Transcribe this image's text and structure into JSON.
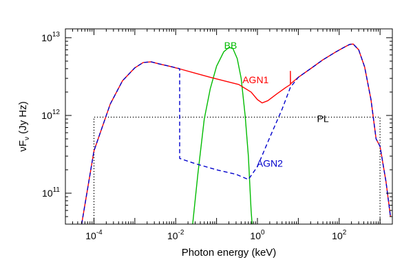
{
  "chart_data": {
    "type": "line",
    "x_scale": "log",
    "y_scale": "log",
    "xlim": [
      2e-05,
      2000
    ],
    "ylim": [
      40000000000,
      13000000000000
    ],
    "xlabel": "Photon energy (keV)",
    "ylabel": "νF",
    "ylabel_sub": "ν",
    "ylabel_unit": " (Jy Hz)",
    "x_ticks": [
      {
        "value": 0.0001,
        "base": "10",
        "exp": "-4"
      },
      {
        "value": 0.01,
        "base": "10",
        "exp": "-2"
      },
      {
        "value": 1,
        "base": "10",
        "exp": "0"
      },
      {
        "value": 100,
        "base": "10",
        "exp": "2"
      }
    ],
    "y_ticks": [
      {
        "value": 100000000000,
        "base": "10",
        "exp": "11"
      },
      {
        "value": 1000000000000,
        "base": "10",
        "exp": "12"
      },
      {
        "value": 10000000000000,
        "base": "10",
        "exp": "13"
      }
    ],
    "series": [
      {
        "name": "AGN1",
        "color": "#ff0000",
        "style": "solid",
        "label_at": [
          0.9,
          2600000000000
        ],
        "points": [
          [
            5e-05,
            40000000000
          ],
          [
            0.0001,
            350000000000
          ],
          [
            0.00025,
            1400000000000
          ],
          [
            0.0005,
            2800000000000
          ],
          [
            0.001,
            4100000000000
          ],
          [
            0.0016,
            4800000000000
          ],
          [
            0.0025,
            4900000000000
          ],
          [
            0.004,
            4600000000000
          ],
          [
            0.007,
            4300000000000
          ],
          [
            0.012,
            4000000000000
          ],
          [
            0.03,
            3500000000000
          ],
          [
            0.07,
            3100000000000
          ],
          [
            0.15,
            2800000000000
          ],
          [
            0.35,
            2500000000000
          ],
          [
            0.7,
            2000000000000
          ],
          [
            1.0,
            1600000000000
          ],
          [
            1.3,
            1450000000000
          ],
          [
            1.8,
            1550000000000
          ],
          [
            3.0,
            1900000000000
          ],
          [
            5.0,
            2300000000000
          ],
          [
            6.4,
            2500000000000
          ],
          [
            6.4,
            3700000000000
          ],
          [
            6.45,
            2550000000000
          ],
          [
            10,
            3100000000000
          ],
          [
            20,
            4000000000000
          ],
          [
            40,
            5200000000000
          ],
          [
            80,
            6500000000000
          ],
          [
            130,
            7500000000000
          ],
          [
            180,
            8200000000000
          ],
          [
            220,
            8300000000000
          ],
          [
            300,
            7000000000000
          ],
          [
            420,
            4200000000000
          ],
          [
            600,
            1600000000000
          ],
          [
            800,
            500000000000
          ],
          [
            1000,
            400000000000
          ],
          [
            1400,
            140000000000
          ],
          [
            1800,
            50000000000
          ]
        ]
      },
      {
        "name": "AGN2",
        "color": "#0000cc",
        "style": "dashed",
        "label_at": [
          2.0,
          220000000000
        ],
        "points": [
          [
            5e-05,
            40000000000
          ],
          [
            0.0001,
            350000000000
          ],
          [
            0.00025,
            1400000000000
          ],
          [
            0.0005,
            2800000000000
          ],
          [
            0.001,
            4100000000000
          ],
          [
            0.0016,
            4800000000000
          ],
          [
            0.0025,
            4900000000000
          ],
          [
            0.004,
            4600000000000
          ],
          [
            0.007,
            4300000000000
          ],
          [
            0.0125,
            4000000000000
          ],
          [
            0.0125,
            280000000000
          ],
          [
            0.03,
            240000000000
          ],
          [
            0.1,
            200000000000
          ],
          [
            0.3,
            175000000000
          ],
          [
            0.6,
            150000000000
          ],
          [
            1.0,
            220000000000
          ],
          [
            2.0,
            520000000000
          ],
          [
            4.0,
            1200000000000
          ],
          [
            6.4,
            2300000000000
          ],
          [
            10,
            3100000000000
          ],
          [
            20,
            4000000000000
          ],
          [
            40,
            5200000000000
          ],
          [
            80,
            6500000000000
          ],
          [
            130,
            7500000000000
          ],
          [
            180,
            8200000000000
          ],
          [
            220,
            8300000000000
          ],
          [
            300,
            7000000000000
          ],
          [
            420,
            4200000000000
          ],
          [
            600,
            1600000000000
          ],
          [
            800,
            500000000000
          ],
          [
            1000,
            400000000000
          ],
          [
            1400,
            140000000000
          ],
          [
            1800,
            50000000000
          ]
        ]
      },
      {
        "name": "BB",
        "color": "#00bb00",
        "style": "solid",
        "label_at": [
          0.22,
          7200000000000
        ],
        "points": [
          [
            0.026,
            40000000000
          ],
          [
            0.035,
            180000000000
          ],
          [
            0.05,
            900000000000
          ],
          [
            0.07,
            2200000000000
          ],
          [
            0.1,
            4300000000000
          ],
          [
            0.15,
            6600000000000
          ],
          [
            0.2,
            7500000000000
          ],
          [
            0.25,
            7300000000000
          ],
          [
            0.32,
            5400000000000
          ],
          [
            0.4,
            3000000000000
          ],
          [
            0.5,
            1000000000000
          ],
          [
            0.6,
            300000000000
          ],
          [
            0.7,
            60000000000
          ],
          [
            0.74,
            40000000000
          ]
        ]
      },
      {
        "name": "PL",
        "color": "#000000",
        "style": "dotted",
        "label_at": [
          40,
          820000000000
        ],
        "points": [
          [
            0.0001,
            40000000000
          ],
          [
            0.0001,
            950000000000
          ],
          [
            1000,
            950000000000
          ],
          [
            1000,
            40000000000
          ]
        ]
      }
    ]
  }
}
